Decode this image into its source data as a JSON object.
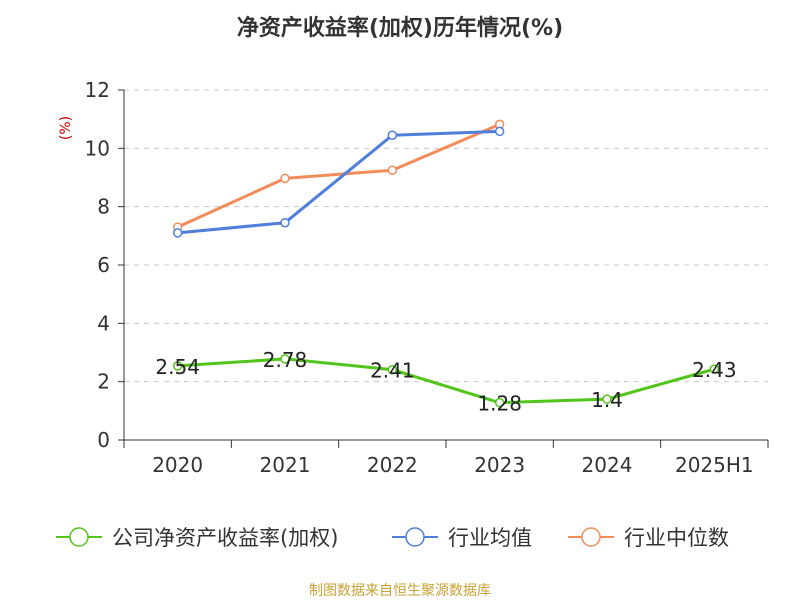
{
  "footer": {
    "source": "制图数据来自恒生聚源数据库"
  },
  "chart_data": {
    "type": "line",
    "title": "净资产收益率(加权)历年情况(%)",
    "ylabel": "(%)",
    "xlabel": "",
    "categories": [
      "2020",
      "2021",
      "2022",
      "2023",
      "2024",
      "2025H1"
    ],
    "ylim": [
      0,
      12
    ],
    "yticks": [
      0,
      2,
      4,
      6,
      8,
      10,
      12
    ],
    "grid": true,
    "legend_position": "bottom",
    "series": [
      {
        "name": "公司净资产收益率(加权)",
        "color": "#52c41a",
        "values": [
          2.54,
          2.78,
          2.41,
          1.28,
          1.4,
          2.43
        ],
        "labels": [
          "2.54",
          "2.78",
          "2.41",
          "1.28",
          "1.4",
          "2.43"
        ]
      },
      {
        "name": "行业均值",
        "color": "#4f7fdb",
        "values": [
          7.1,
          7.45,
          10.45,
          10.58,
          null,
          null
        ]
      },
      {
        "name": "行业中位数",
        "color": "#f28c5a",
        "values": [
          7.3,
          8.97,
          9.25,
          10.82,
          null,
          null
        ]
      }
    ]
  }
}
